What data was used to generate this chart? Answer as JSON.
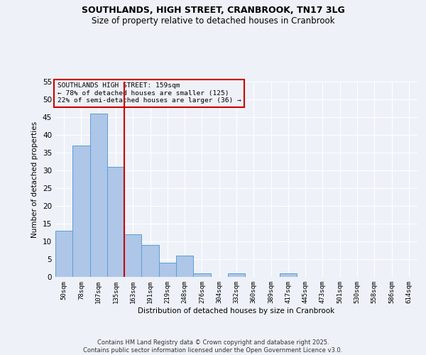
{
  "title_line1": "SOUTHLANDS, HIGH STREET, CRANBROOK, TN17 3LG",
  "title_line2": "Size of property relative to detached houses in Cranbrook",
  "xlabel": "Distribution of detached houses by size in Cranbrook",
  "ylabel": "Number of detached properties",
  "bar_labels": [
    "50sqm",
    "78sqm",
    "107sqm",
    "135sqm",
    "163sqm",
    "191sqm",
    "219sqm",
    "248sqm",
    "276sqm",
    "304sqm",
    "332sqm",
    "360sqm",
    "389sqm",
    "417sqm",
    "445sqm",
    "473sqm",
    "501sqm",
    "530sqm",
    "558sqm",
    "586sqm",
    "614sqm"
  ],
  "bar_values": [
    13,
    37,
    46,
    31,
    12,
    9,
    4,
    6,
    1,
    0,
    1,
    0,
    0,
    1,
    0,
    0,
    0,
    0,
    0,
    0,
    0
  ],
  "bar_color": "#aec6e8",
  "bar_edge_color": "#5a9fd4",
  "vline_color": "#cc0000",
  "annotation_title": "SOUTHLANDS HIGH STREET: 159sqm",
  "annotation_line1": "← 78% of detached houses are smaller (125)",
  "annotation_line2": "22% of semi-detached houses are larger (36) →",
  "annotation_box_color": "#cc0000",
  "ylim": [
    0,
    55
  ],
  "yticks": [
    0,
    5,
    10,
    15,
    20,
    25,
    30,
    35,
    40,
    45,
    50,
    55
  ],
  "footer_line1": "Contains HM Land Registry data © Crown copyright and database right 2025.",
  "footer_line2": "Contains public sector information licensed under the Open Government Licence v3.0.",
  "bg_color": "#eef2f8",
  "grid_color": "#ffffff"
}
